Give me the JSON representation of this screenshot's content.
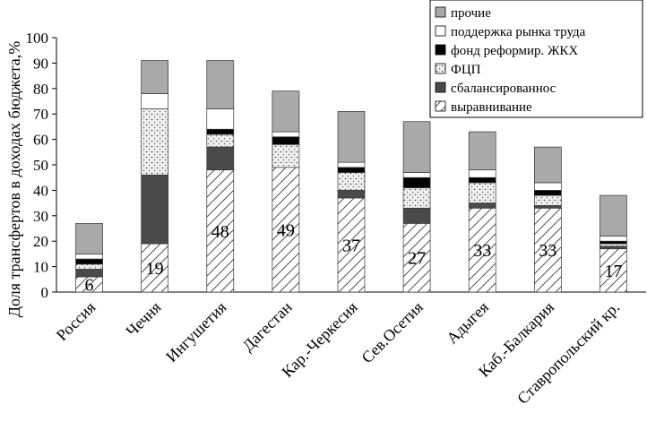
{
  "chart_data": {
    "type": "bar",
    "stacked": true,
    "title": "",
    "xlabel": "",
    "ylabel": "Доля трансфертов в доходах бюджета,%",
    "ylim": [
      0,
      100
    ],
    "yticks": [
      0,
      10,
      20,
      30,
      40,
      50,
      60,
      70,
      80,
      90,
      100
    ],
    "grid": false,
    "legend_position": "top-right",
    "categories": [
      "Россия",
      "Чечня",
      "Ингушетия",
      "Дагестан",
      "Кар.-Черкесия",
      "Сев.Осетия",
      "Адыгея",
      "Каб.-Балкария",
      "Ставропольский кр."
    ],
    "series": [
      {
        "name": "выравнивание",
        "pattern": "hatch",
        "values": [
          6,
          19,
          48,
          49,
          37,
          27,
          33,
          33,
          17
        ]
      },
      {
        "name": "сбалансированнос",
        "pattern": "dark",
        "values": [
          3,
          27,
          9,
          0,
          3,
          6,
          2,
          1,
          1
        ]
      },
      {
        "name": "ФЦП",
        "pattern": "dotted",
        "values": [
          2,
          26,
          5,
          9,
          7,
          8,
          8,
          4,
          1
        ]
      },
      {
        "name": "фонд реформир. ЖКХ",
        "pattern": "black",
        "values": [
          2,
          0,
          2,
          3,
          2,
          4,
          2,
          2,
          1
        ]
      },
      {
        "name": "поддержка рынка труда",
        "pattern": "white",
        "values": [
          2,
          6,
          8,
          2,
          2,
          2,
          3,
          3,
          2
        ]
      },
      {
        "name": "прочие",
        "pattern": "gray",
        "values": [
          12,
          13,
          19,
          16,
          20,
          20,
          15,
          14,
          16
        ]
      }
    ],
    "data_labels": [
      "6",
      "19",
      "48",
      "49",
      "37",
      "27",
      "33",
      "33",
      "17"
    ],
    "colors": {
      "hatch_line": "#555555",
      "dark": "#4a4a4a",
      "black": "#000000",
      "gray": "#a9a9a9",
      "dotted_bg": "#f4f4f4",
      "dotted_dots": "#555555",
      "white": "#ffffff",
      "axis": "#000000"
    }
  }
}
